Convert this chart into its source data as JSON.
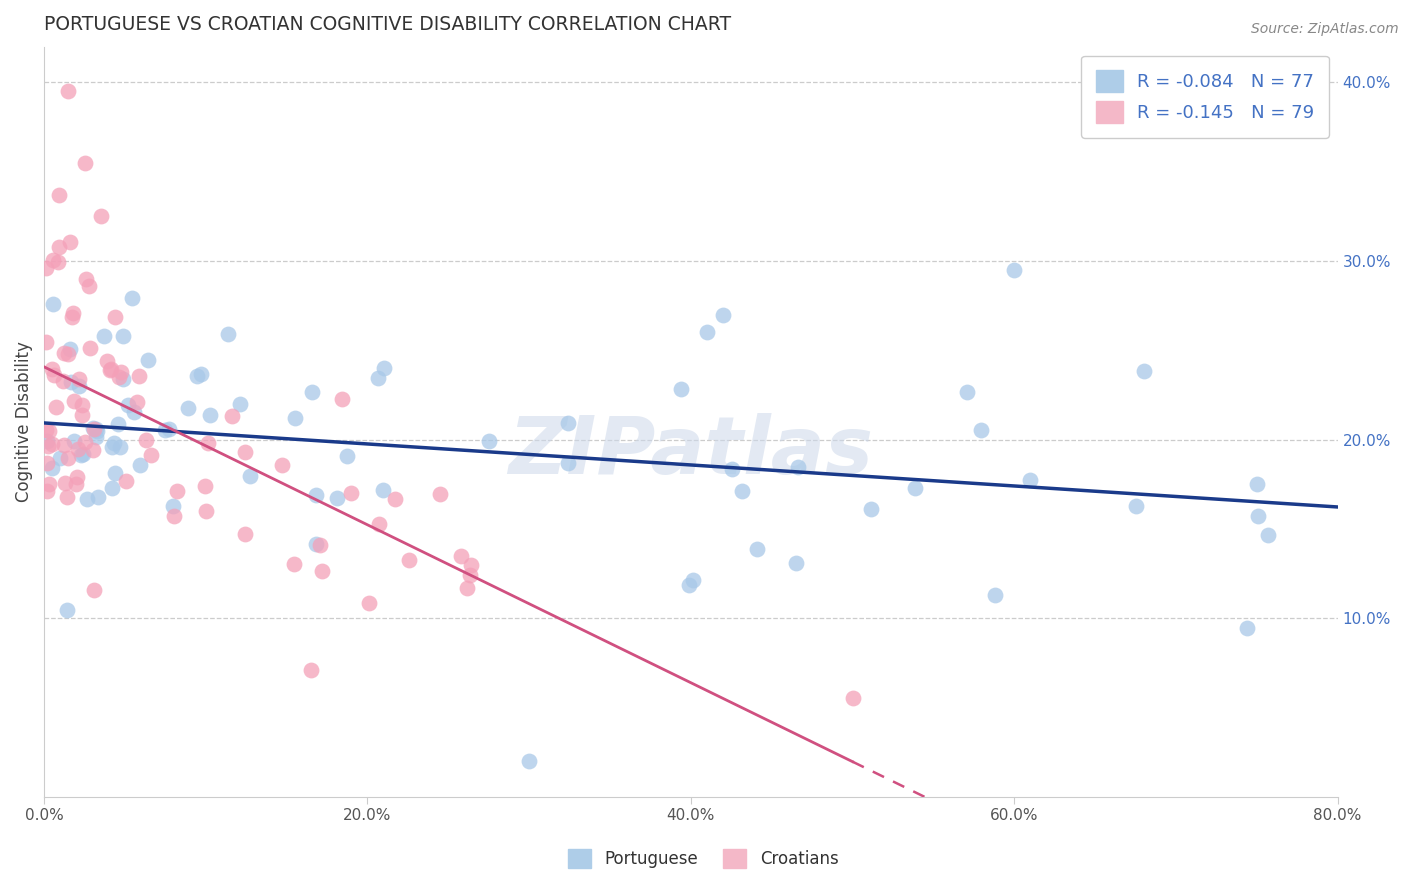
{
  "title": "PORTUGUESE VS CROATIAN COGNITIVE DISABILITY CORRELATION CHART",
  "source": "Source: ZipAtlas.com",
  "ylabel": "Cognitive Disability",
  "xlim": [
    0.0,
    0.8
  ],
  "ylim": [
    0.0,
    0.42
  ],
  "xtick_labels": [
    "0.0%",
    "20.0%",
    "40.0%",
    "60.0%",
    "80.0%"
  ],
  "xtick_vals": [
    0.0,
    0.2,
    0.4,
    0.6,
    0.8
  ],
  "ytick_labels": [
    "10.0%",
    "20.0%",
    "30.0%",
    "40.0%"
  ],
  "ytick_vals": [
    0.1,
    0.2,
    0.3,
    0.4
  ],
  "portuguese_R": -0.084,
  "portuguese_N": 77,
  "croatian_R": -0.145,
  "croatian_N": 79,
  "blue_scatter_color": "#a8c8e8",
  "pink_scatter_color": "#f4a0b8",
  "blue_line_color": "#1a3a8a",
  "pink_line_color": "#d05080",
  "watermark": "ZIPatlas",
  "legend_label_blue": "Portuguese",
  "legend_label_pink": "Croatians",
  "background_color": "#ffffff",
  "grid_color": "#cccccc",
  "title_color": "#333333",
  "axis_label_color": "#444444",
  "tick_color": "#555555",
  "right_ytick_color": "#4472c4"
}
